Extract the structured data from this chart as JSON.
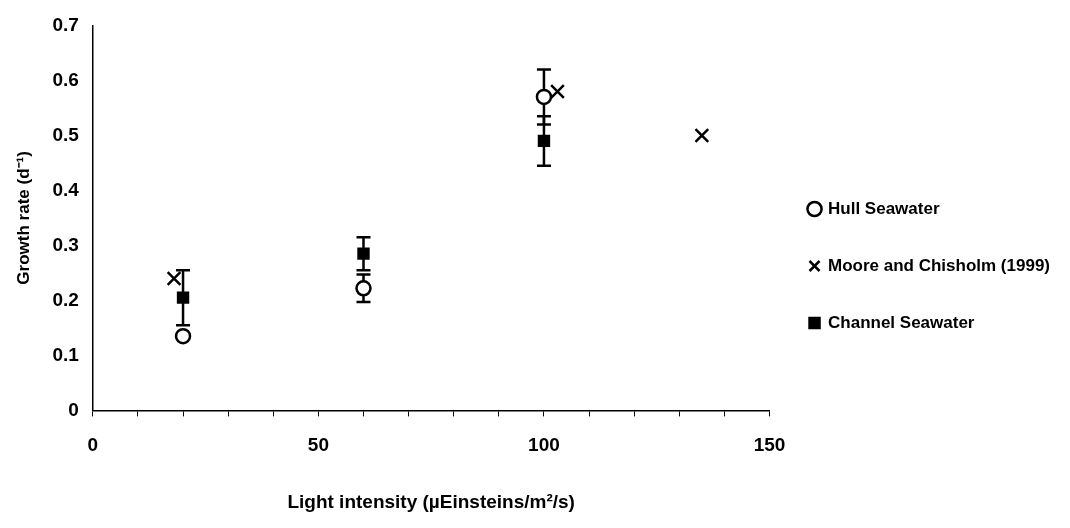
{
  "chart_data": {
    "type": "scatter",
    "xlabel": "Light intensity (µEinsteins/m²/s)",
    "ylabel": "Growth rate (d⁻¹)",
    "xlim": [
      0,
      150
    ],
    "xticks": [
      0,
      {
        "value": 10,
        "label": null
      },
      {
        "value": 20,
        "label": null
      },
      {
        "value": 30,
        "label": null
      },
      {
        "value": 40,
        "label": null
      },
      50,
      {
        "value": 60,
        "label": null
      },
      {
        "value": 70,
        "label": null
      },
      {
        "value": 80,
        "label": null
      },
      {
        "value": 90,
        "label": null
      },
      100,
      {
        "value": 110,
        "label": null
      },
      {
        "value": 120,
        "label": null
      },
      {
        "value": 130,
        "label": null
      },
      {
        "value": 140,
        "label": null
      },
      150
    ],
    "ylim": [
      0,
      0.7
    ],
    "yticks": [
      0,
      0.1,
      0.2,
      0.3,
      0.4,
      0.5,
      0.6,
      0.7
    ],
    "grid": false,
    "legend": "right",
    "series": [
      {
        "name": "Hull Seawater",
        "color": "#000000",
        "marker": "circle",
        "x": [
          20,
          60,
          100
        ],
        "values": [
          0.135,
          0.222,
          0.57
        ],
        "errors": [
          null,
          0.025,
          0.05
        ]
      },
      {
        "name": "Moore and Chisholm (1999)",
        "color": "#000000",
        "marker": "cross",
        "x": [
          18,
          103,
          135
        ],
        "values": [
          0.24,
          0.58,
          0.5
        ]
      },
      {
        "name": "Channel Seawater",
        "color": "#000000",
        "marker": "square",
        "x": [
          20,
          60,
          100
        ],
        "values": [
          0.205,
          0.285,
          0.49
        ],
        "errors": [
          0.05,
          0.03,
          0.045
        ]
      }
    ]
  }
}
